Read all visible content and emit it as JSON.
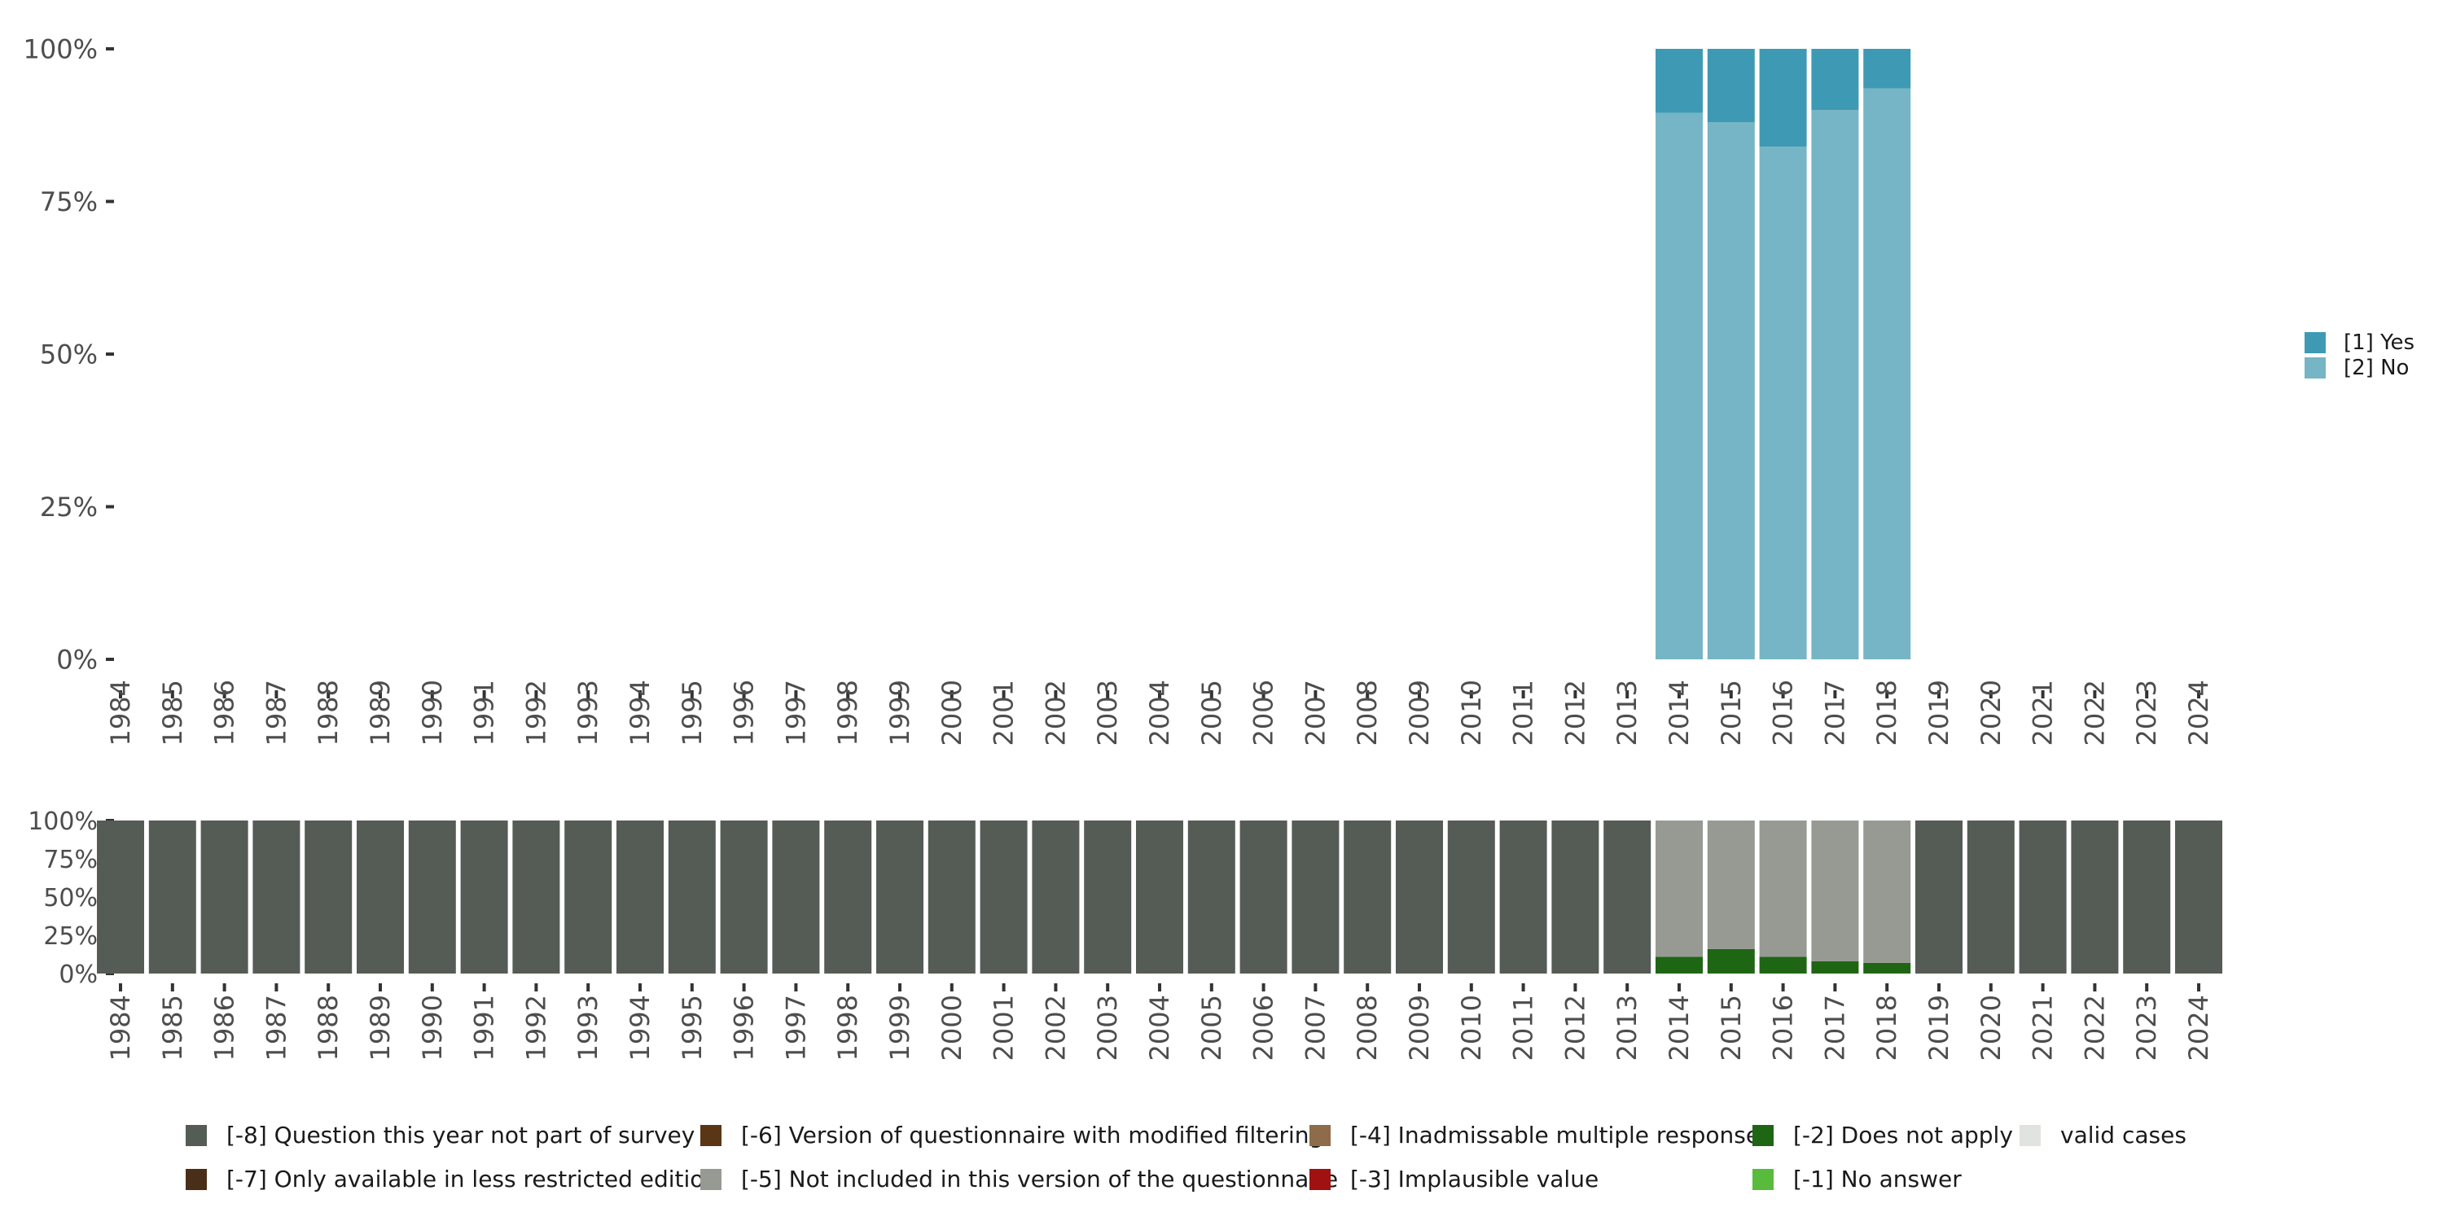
{
  "chart_data": [
    {
      "type": "bar",
      "stacked": true,
      "categories": [
        "1984",
        "1985",
        "1986",
        "1987",
        "1988",
        "1989",
        "1990",
        "1991",
        "1992",
        "1993",
        "1994",
        "1995",
        "1996",
        "1997",
        "1998",
        "1999",
        "2000",
        "2001",
        "2002",
        "2003",
        "2004",
        "2005",
        "2006",
        "2007",
        "2008",
        "2009",
        "2010",
        "2011",
        "2012",
        "2013",
        "2014",
        "2015",
        "2016",
        "2017",
        "2018",
        "2019",
        "2020",
        "2021",
        "2022",
        "2023",
        "2024"
      ],
      "ylim": [
        0,
        100
      ],
      "yticks": [
        "0%",
        "25%",
        "50%",
        "75%",
        "100%"
      ],
      "grid": false,
      "legend_position": "right",
      "series": [
        {
          "name": "[2] No",
          "color": "#76b5c5",
          "values": [
            null,
            null,
            null,
            null,
            null,
            null,
            null,
            null,
            null,
            null,
            null,
            null,
            null,
            null,
            null,
            null,
            null,
            null,
            null,
            null,
            null,
            null,
            null,
            null,
            null,
            null,
            null,
            null,
            null,
            null,
            89.5,
            88,
            84,
            90,
            93.5,
            null,
            null,
            null,
            null,
            null,
            null
          ]
        },
        {
          "name": "[1] Yes",
          "color": "#3e9ab4",
          "values": [
            null,
            null,
            null,
            null,
            null,
            null,
            null,
            null,
            null,
            null,
            null,
            null,
            null,
            null,
            null,
            null,
            null,
            null,
            null,
            null,
            null,
            null,
            null,
            null,
            null,
            null,
            null,
            null,
            null,
            null,
            10.5,
            12,
            16,
            10,
            6.5,
            null,
            null,
            null,
            null,
            null,
            null
          ]
        }
      ]
    },
    {
      "type": "bar",
      "stacked": true,
      "categories": [
        "1984",
        "1985",
        "1986",
        "1987",
        "1988",
        "1989",
        "1990",
        "1991",
        "1992",
        "1993",
        "1994",
        "1995",
        "1996",
        "1997",
        "1998",
        "1999",
        "2000",
        "2001",
        "2002",
        "2003",
        "2004",
        "2005",
        "2006",
        "2007",
        "2008",
        "2009",
        "2010",
        "2011",
        "2012",
        "2013",
        "2014",
        "2015",
        "2016",
        "2017",
        "2018",
        "2019",
        "2020",
        "2021",
        "2022",
        "2023",
        "2024"
      ],
      "ylim": [
        0,
        100
      ],
      "yticks": [
        "0%",
        "25%",
        "50%",
        "75%",
        "100%"
      ],
      "grid": false,
      "legend_position": "bottom",
      "series": [
        {
          "name": "[-8] Question this year not part of survey",
          "color": "#555b55",
          "values": [
            100,
            100,
            100,
            100,
            100,
            100,
            100,
            100,
            100,
            100,
            100,
            100,
            100,
            100,
            100,
            100,
            100,
            100,
            100,
            100,
            100,
            100,
            100,
            100,
            100,
            100,
            100,
            100,
            100,
            100,
            0,
            0,
            0,
            0,
            0,
            100,
            100,
            100,
            100,
            100,
            100
          ]
        },
        {
          "name": "[-2] Does not apply",
          "color": "#1f6614",
          "values": [
            0,
            0,
            0,
            0,
            0,
            0,
            0,
            0,
            0,
            0,
            0,
            0,
            0,
            0,
            0,
            0,
            0,
            0,
            0,
            0,
            0,
            0,
            0,
            0,
            0,
            0,
            0,
            0,
            0,
            0,
            11,
            16,
            11,
            8,
            7,
            0,
            0,
            0,
            0,
            0,
            0
          ]
        },
        {
          "name": "[-5] Not included in this version of the questionnaire",
          "color": "#969a92",
          "values": [
            0,
            0,
            0,
            0,
            0,
            0,
            0,
            0,
            0,
            0,
            0,
            0,
            0,
            0,
            0,
            0,
            0,
            0,
            0,
            0,
            0,
            0,
            0,
            0,
            0,
            0,
            0,
            0,
            0,
            0,
            89,
            84,
            89,
            92,
            93,
            0,
            0,
            0,
            0,
            0,
            0
          ]
        }
      ]
    }
  ],
  "legend_bottom": [
    [
      {
        "label": "[-8] Question this year not part of survey",
        "color": "#555b55"
      },
      {
        "label": "[-6] Version of questionnaire with modified filtering",
        "color": "#5a3516"
      },
      {
        "label": "[-4] Inadmissable multiple response",
        "color": "#8e6b4a"
      },
      {
        "label": "[-2] Does not apply",
        "color": "#1f6614"
      },
      {
        "label": "valid cases",
        "color": "#e1e3e1"
      }
    ],
    [
      {
        "label": "[-7] Only available in less restricted edition",
        "color": "#4a2f18"
      },
      {
        "label": "[-5] Not included in this version of the questionnaire",
        "color": "#969a92"
      },
      {
        "label": "[-3] Implausible value",
        "color": "#a01212"
      },
      {
        "label": "[-1] No answer",
        "color": "#58bb3c"
      }
    ]
  ]
}
